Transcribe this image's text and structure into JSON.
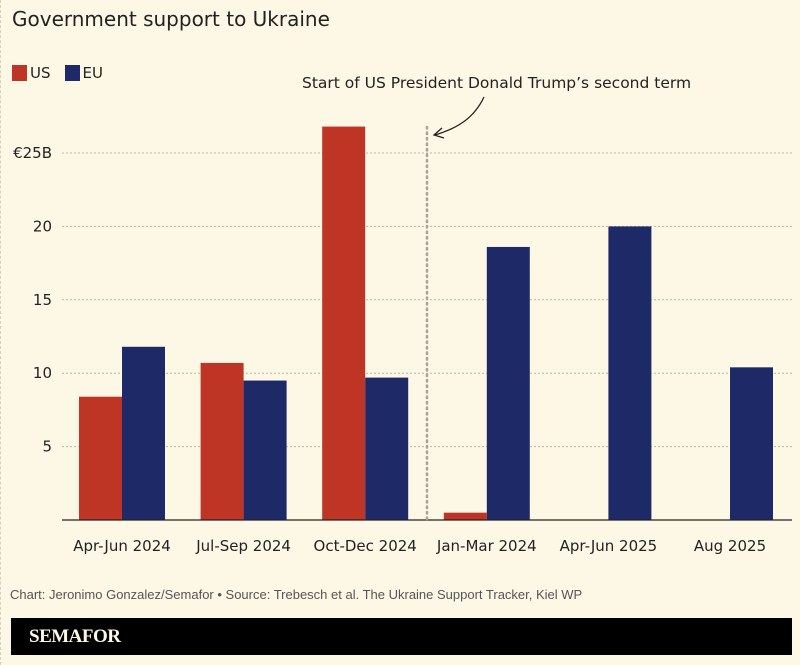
{
  "chart_data": {
    "type": "bar",
    "title": "Government support to Ukraine",
    "categories": [
      "Apr-Jun 2024",
      "Jul-Sep 2024",
      "Oct-Dec 2024",
      "Jan-Mar 2024",
      "Apr-Jun 2025",
      "Aug 2025"
    ],
    "series": [
      {
        "name": "US",
        "color": "#bf3525",
        "values": [
          8.4,
          10.7,
          26.8,
          0.5,
          0,
          0
        ]
      },
      {
        "name": "EU",
        "color": "#1e2a68",
        "values": [
          11.8,
          9.5,
          9.7,
          18.6,
          20.0,
          10.4
        ]
      }
    ],
    "yticks": [
      5,
      10,
      15,
      20,
      25
    ],
    "ytick_labels": [
      "5",
      "10",
      "15",
      "20",
      "€25B"
    ],
    "ylim": [
      0,
      27
    ],
    "grid": true,
    "legend_placement": "top-left",
    "annotation": {
      "text": "Start of US President Donald Trump’s second term",
      "between_categories": [
        "Oct-Dec 2024",
        "Jan-Mar 2024"
      ]
    }
  },
  "footer": {
    "credit": "Chart: Jeronimo Gonzalez/Semafor • Source: Trebesch et al. The Ukraine Support Tracker, Kiel WP",
    "logo": "SEMAFOR"
  }
}
